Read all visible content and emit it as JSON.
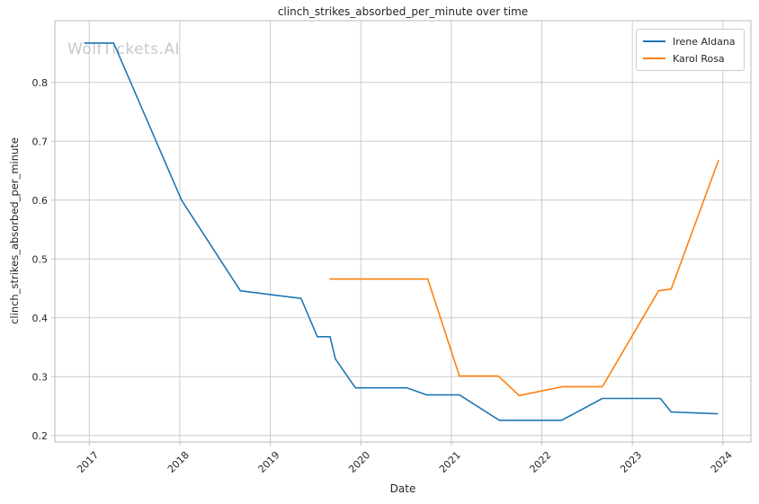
{
  "title": "clinch_strikes_absorbed_per_minute over time",
  "watermark": {
    "text": "WolfTickets.AI",
    "color": "#c8c8c8"
  },
  "colors": {
    "grid": "#cccccc",
    "spine": "#c4c4c4",
    "tick_text": "#262626",
    "background": "#ffffff"
  },
  "legend": {
    "entries": [
      "Irene Aldana",
      "Karol Rosa"
    ]
  },
  "chart_data": {
    "type": "line",
    "title": "clinch_strikes_absorbed_per_minute over time",
    "xlabel": "Date",
    "ylabel": "clinch_strikes_absorbed_per_minute",
    "x_domain": [
      2016.62,
      2024.31
    ],
    "y_domain": [
      0.189,
      0.905
    ],
    "x_ticks": [
      2017,
      2018,
      2019,
      2020,
      2021,
      2022,
      2023,
      2024
    ],
    "y_ticks": [
      0.2,
      0.3,
      0.4,
      0.5,
      0.6,
      0.7,
      0.8
    ],
    "grid": true,
    "legend_position": "upper-right",
    "series": [
      {
        "name": "Irene Aldana",
        "color": "#1f77b4",
        "points": [
          [
            2016.95,
            0.867
          ],
          [
            2017.27,
            0.867
          ],
          [
            2018.02,
            0.6
          ],
          [
            2018.67,
            0.446
          ],
          [
            2019.34,
            0.433
          ],
          [
            2019.52,
            0.368
          ],
          [
            2019.66,
            0.368
          ],
          [
            2019.72,
            0.33
          ],
          [
            2019.94,
            0.281
          ],
          [
            2020.51,
            0.281
          ],
          [
            2020.73,
            0.269
          ],
          [
            2021.09,
            0.269
          ],
          [
            2021.53,
            0.226
          ],
          [
            2022.22,
            0.226
          ],
          [
            2022.67,
            0.263
          ],
          [
            2023.31,
            0.263
          ],
          [
            2023.43,
            0.24
          ],
          [
            2023.94,
            0.237
          ]
        ]
      },
      {
        "name": "Karol Rosa",
        "color": "#ff7f0e",
        "points": [
          [
            2019.66,
            0.466
          ],
          [
            2020.74,
            0.466
          ],
          [
            2021.09,
            0.301
          ],
          [
            2021.52,
            0.301
          ],
          [
            2021.75,
            0.268
          ],
          [
            2022.23,
            0.283
          ],
          [
            2022.67,
            0.283
          ],
          [
            2023.29,
            0.446
          ],
          [
            2023.43,
            0.449
          ],
          [
            2023.95,
            0.667
          ]
        ]
      }
    ]
  }
}
